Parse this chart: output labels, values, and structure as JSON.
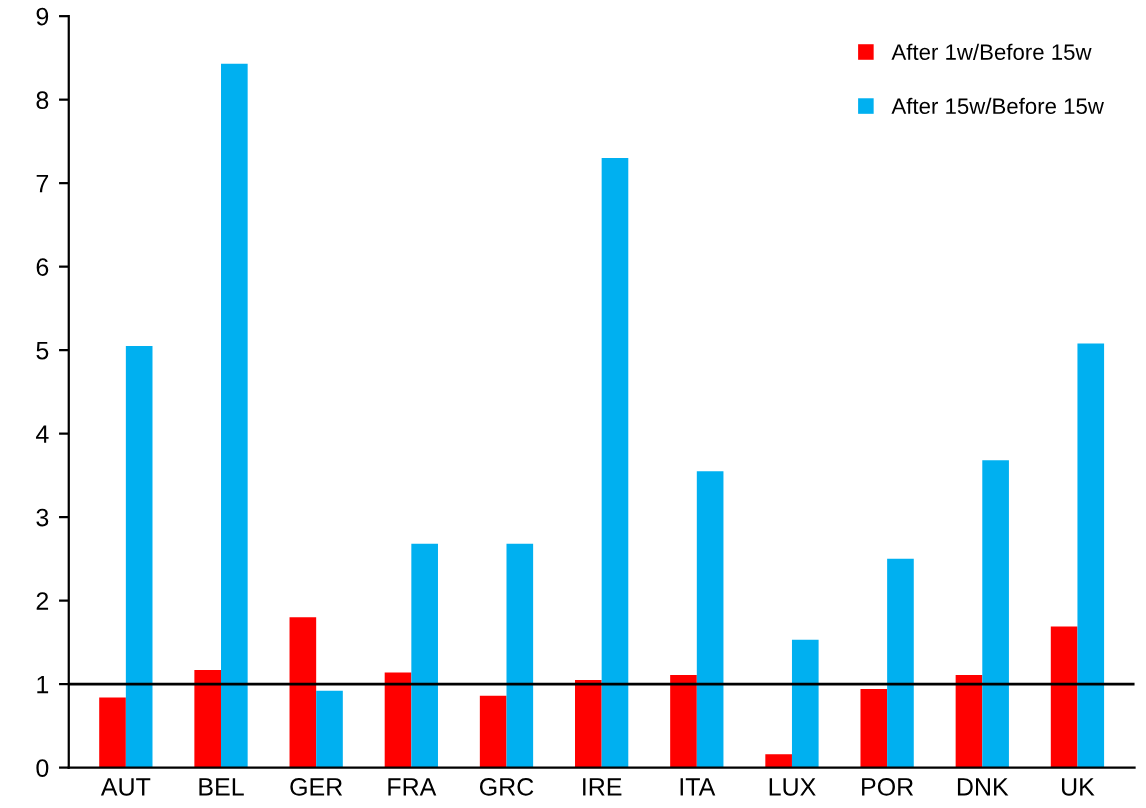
{
  "chart_data": {
    "type": "bar",
    "categories": [
      "AUT",
      "BEL",
      "GER",
      "FRA",
      "GRC",
      "IRE",
      "ITA",
      "LUX",
      "POR",
      "DNK",
      "UK"
    ],
    "series": [
      {
        "name": "After 1w/Before 15w",
        "color": "#ff0000",
        "values": [
          0.84,
          1.17,
          1.8,
          1.14,
          0.86,
          1.05,
          1.11,
          0.16,
          0.94,
          1.11,
          1.69
        ]
      },
      {
        "name": "After 15w/Before 15w",
        "color": "#00b0f0",
        "values": [
          5.05,
          8.43,
          0.92,
          2.68,
          2.68,
          7.3,
          3.55,
          1.53,
          2.5,
          3.68,
          5.08
        ]
      }
    ],
    "ylim": [
      0,
      9
    ],
    "yticks": [
      0,
      1,
      2,
      3,
      4,
      5,
      6,
      7,
      8,
      9
    ],
    "grid": false,
    "legend": "top right",
    "ref_lines": [
      {
        "axis": "y",
        "value": 1,
        "color": "#000000"
      }
    ]
  }
}
